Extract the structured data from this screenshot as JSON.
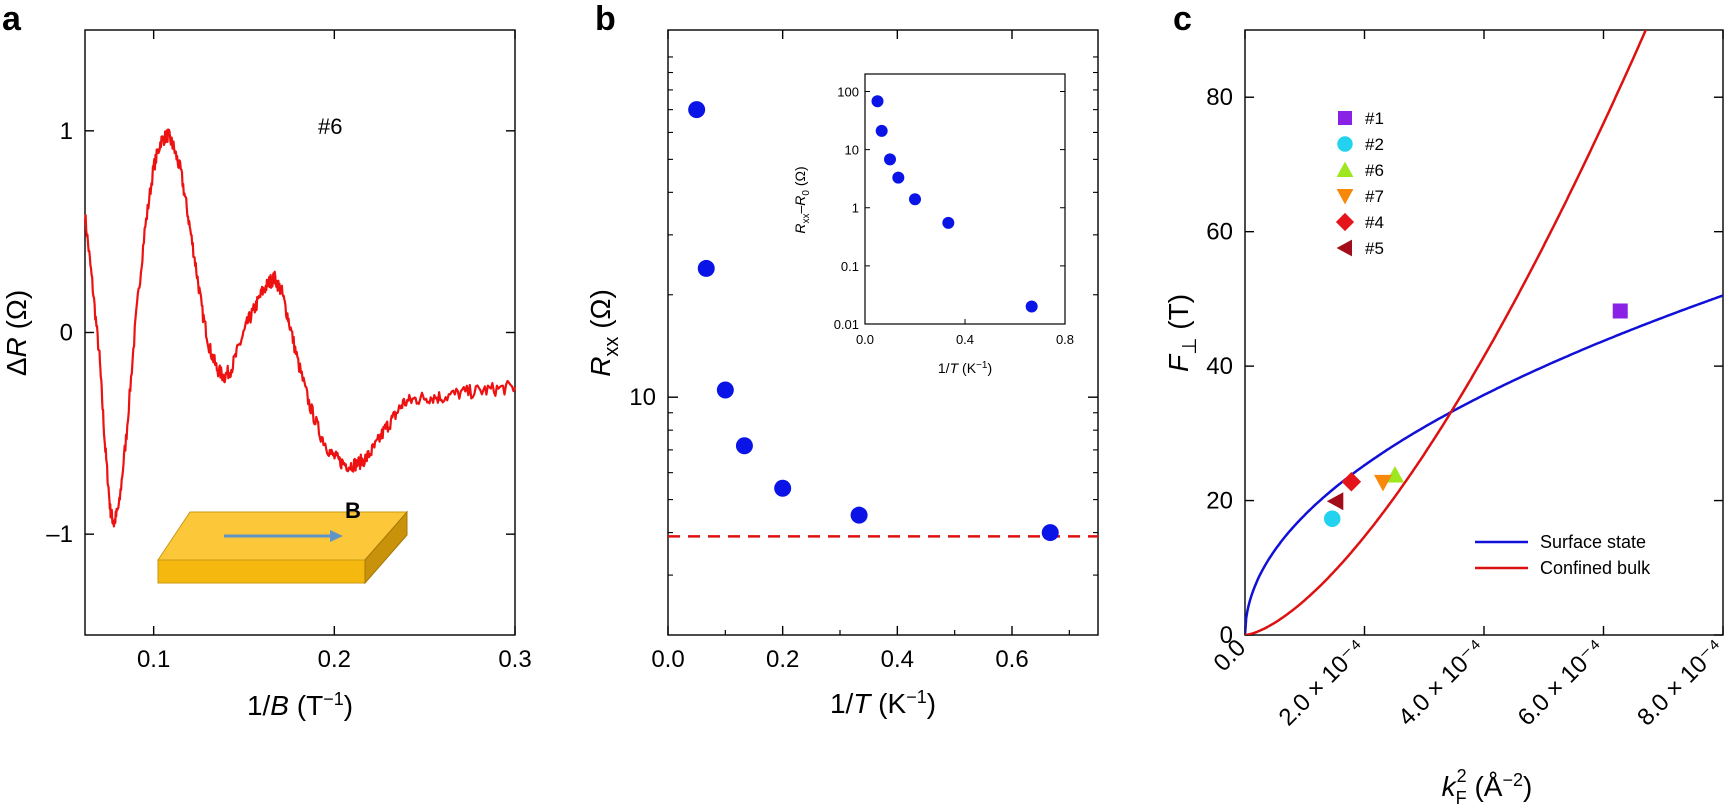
{
  "chart_data": [
    {
      "id": "a",
      "type": "line",
      "panel_label": "a",
      "annotation": "#6",
      "inset_label": "B",
      "xlabel": "1/B (T⁻¹)",
      "ylabel": "ΔR (Ω)",
      "xlim": [
        0.062,
        0.3
      ],
      "ylim": [
        -1.5,
        1.5
      ],
      "xticks": [
        0.1,
        0.2,
        0.3
      ],
      "xtick_labels": [
        "0.1",
        "0.2",
        "0.3"
      ],
      "yticks": [
        -1,
        0,
        1
      ],
      "ytick_labels": [
        "–1",
        "0",
        "1"
      ],
      "color": "#ee1111",
      "series": [
        {
          "name": "ΔR",
          "x": [
            0.062,
            0.066,
            0.07,
            0.073,
            0.076,
            0.078,
            0.081,
            0.085,
            0.09,
            0.095,
            0.1,
            0.104,
            0.108,
            0.111,
            0.115,
            0.119,
            0.123,
            0.127,
            0.131,
            0.135,
            0.139,
            0.143,
            0.148,
            0.152,
            0.156,
            0.16,
            0.164,
            0.167,
            0.171,
            0.175,
            0.18,
            0.186,
            0.192,
            0.198,
            0.203,
            0.208,
            0.213,
            0.218,
            0.223,
            0.228,
            0.233,
            0.238,
            0.245,
            0.252,
            0.26,
            0.27,
            0.28,
            0.29,
            0.3
          ],
          "y": [
            0.58,
            0.25,
            -0.12,
            -0.55,
            -0.88,
            -0.95,
            -0.85,
            -0.5,
            0.05,
            0.5,
            0.82,
            0.95,
            0.98,
            0.92,
            0.8,
            0.58,
            0.35,
            0.1,
            -0.08,
            -0.18,
            -0.22,
            -0.18,
            -0.05,
            0.05,
            0.12,
            0.2,
            0.25,
            0.27,
            0.2,
            0.05,
            -0.15,
            -0.35,
            -0.5,
            -0.6,
            -0.64,
            -0.66,
            -0.65,
            -0.62,
            -0.56,
            -0.48,
            -0.42,
            -0.35,
            -0.33,
            -0.32,
            -0.32,
            -0.3,
            -0.29,
            -0.28,
            -0.27
          ]
        }
      ]
    },
    {
      "id": "b",
      "type": "scatter",
      "panel_label": "b",
      "xlabel": "1/T (K⁻¹)",
      "ylabel": "Rxx (Ω)",
      "xlim": [
        0.0,
        0.75
      ],
      "ylim_log": [
        2.0,
        120.0
      ],
      "xticks": [
        0.0,
        0.2,
        0.4,
        0.6
      ],
      "xtick_labels": [
        "0.0",
        "0.2",
        "0.4",
        "0.6"
      ],
      "ytick_label": "10",
      "color": "#0a14e6",
      "dashed_line_y": 3.9,
      "dashed_color": "#dd1111",
      "series": [
        {
          "name": "Rxx",
          "x": [
            0.05,
            0.0667,
            0.1,
            0.1333,
            0.2,
            0.3333,
            0.6667
          ],
          "y": [
            70.0,
            23.9,
            10.5,
            7.2,
            5.4,
            4.5,
            4.0
          ]
        }
      ],
      "inset": {
        "xlabel": "1/T (K⁻¹)",
        "ylabel": "Rxx–R0 (Ω)",
        "xlim": [
          0.0,
          0.8
        ],
        "ylim_log": [
          0.01,
          200.0
        ],
        "xticks": [
          0.0,
          0.4,
          0.8
        ],
        "xtick_labels": [
          "0.0",
          "0.4",
          "0.8"
        ],
        "yticks": [
          0.01,
          0.1,
          1,
          10,
          100
        ],
        "ytick_labels": [
          "0.01",
          "0.1",
          "1",
          "10",
          "100"
        ],
        "series": [
          {
            "name": "Rxx-R0",
            "x": [
              0.05,
              0.0667,
              0.1,
              0.1333,
              0.2,
              0.3333,
              0.6667
            ],
            "y": [
              68.0,
              21.0,
              6.8,
              3.3,
              1.4,
              0.55,
              0.02
            ]
          }
        ]
      }
    },
    {
      "id": "c",
      "type": "scatter",
      "panel_label": "c",
      "xlabel": "kF² (Å⁻²)",
      "ylabel": "F⊥ (T)",
      "xlim": [
        0.0,
        0.0008
      ],
      "ylim": [
        0,
        90
      ],
      "xticks": [
        0.0,
        0.0002,
        0.0004,
        0.0006,
        0.0008
      ],
      "xtick_labels": [
        "0.0",
        "2.0 × 10⁻⁴",
        "4.0 × 10⁻⁴",
        "6.0 × 10⁻⁴",
        "8.0 × 10⁻⁴"
      ],
      "yticks": [
        0,
        20,
        40,
        60,
        80
      ],
      "ytick_labels": [
        "0",
        "20",
        "40",
        "60",
        "80"
      ],
      "curves": [
        {
          "name": "Surface state",
          "color": "#1010d8",
          "model": "sqrt",
          "coefficient": 1785.6
        },
        {
          "name": "Confined bulk",
          "color": "#dd1111",
          "model": "power1.5",
          "coefficient": 5180000.0
        }
      ],
      "points": [
        {
          "name": "#1",
          "marker": "square",
          "color": "#8a22e6",
          "x": 0.000628,
          "y": 48.2
        },
        {
          "name": "#2",
          "marker": "circle",
          "color": "#22d2ee",
          "x": 0.000146,
          "y": 17.3
        },
        {
          "name": "#6",
          "marker": "triangle-up",
          "color": "#9ee61e",
          "x": 0.000251,
          "y": 23.8
        },
        {
          "name": "#7",
          "marker": "triangle-down",
          "color": "#f7880a",
          "x": 0.000231,
          "y": 22.7
        },
        {
          "name": "#4",
          "marker": "diamond",
          "color": "#e4141a",
          "x": 0.000178,
          "y": 22.8
        },
        {
          "name": "#5",
          "marker": "triangle-left",
          "color": "#a50c1a",
          "x": 0.000152,
          "y": 19.9
        }
      ]
    }
  ]
}
